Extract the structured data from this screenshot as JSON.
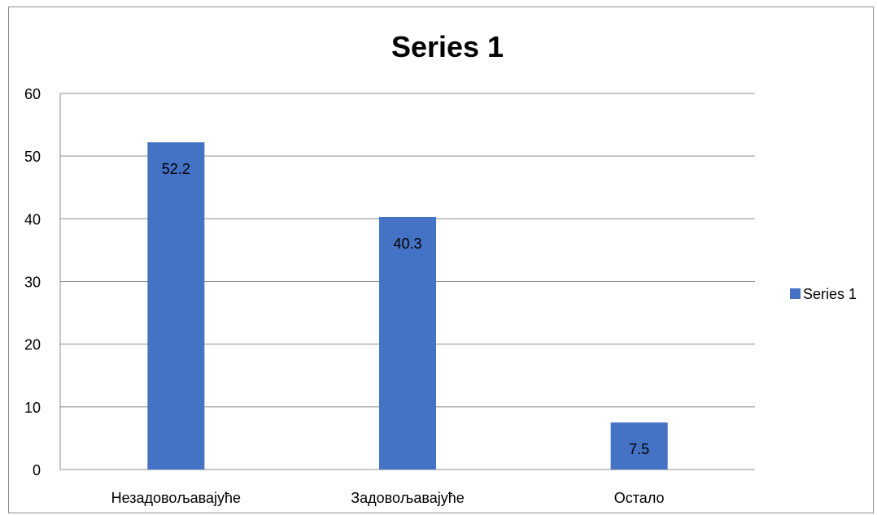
{
  "chart_data": {
    "type": "bar",
    "title": "Series 1",
    "categories": [
      "Незадовољавајуће",
      "Задовољавајуће",
      "Остало"
    ],
    "series": [
      {
        "name": "Series 1",
        "values": [
          52.2,
          40.3,
          7.5
        ]
      }
    ],
    "data_labels": [
      "52.2",
      "40.3",
      "7.5"
    ],
    "y_ticks": [
      "0",
      "10",
      "20",
      "30",
      "40",
      "50",
      "60"
    ],
    "ylim": [
      0,
      60
    ],
    "xlabel": "",
    "ylabel": "",
    "grid": true,
    "legend_position": "right",
    "colors": {
      "bar": "#4472c4",
      "grid": "#8c8c8c",
      "axis": "#8c8c8c"
    }
  }
}
